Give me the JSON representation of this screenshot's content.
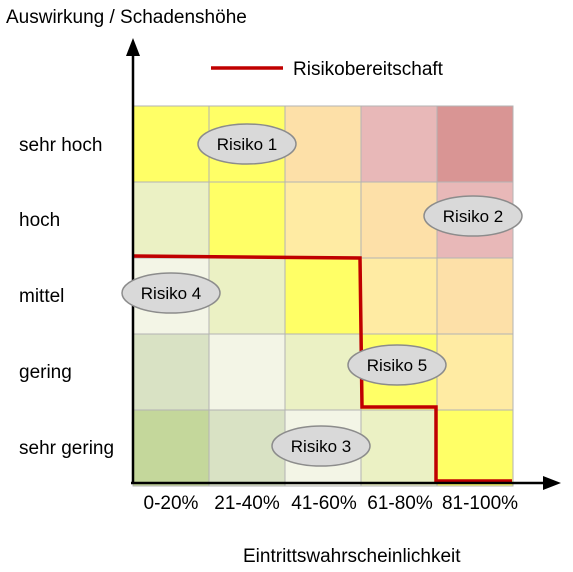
{
  "title": "Auswirkung / Schadenshöhe",
  "x_title": "Eintrittswahrscheinlichkeit",
  "legend": {
    "label": "Risikobereitschaft",
    "color": "#c00000"
  },
  "rows": [
    "sehr hoch",
    "hoch",
    "mittel",
    "gering",
    "sehr gering"
  ],
  "cols": [
    "0-20%",
    "21-40%",
    "41-60%",
    "61-80%",
    "81-100%"
  ],
  "cell_colors": [
    [
      "#ffff66",
      "#ffff66",
      "#fde0a8",
      "#e8b8b8",
      "#d99594"
    ],
    [
      "#ebf1c4",
      "#ffff66",
      "#ffeba3",
      "#fde0a8",
      "#e8b8b8"
    ],
    [
      "#f3f5e6",
      "#ebf1c4",
      "#ffff66",
      "#ffeba3",
      "#fde0a8"
    ],
    [
      "#d9e2c4",
      "#f3f5e6",
      "#ebf1c4",
      "#ffff66",
      "#ffeba3"
    ],
    [
      "#c4d79b",
      "#d9e2c4",
      "#f3f5e6",
      "#ebf1c4",
      "#ffff66"
    ]
  ],
  "risks": [
    {
      "label": "Risiko 1"
    },
    {
      "label": "Risiko 2"
    },
    {
      "label": "Risiko 3"
    },
    {
      "label": "Risiko 4"
    },
    {
      "label": "Risiko 5"
    }
  ]
}
